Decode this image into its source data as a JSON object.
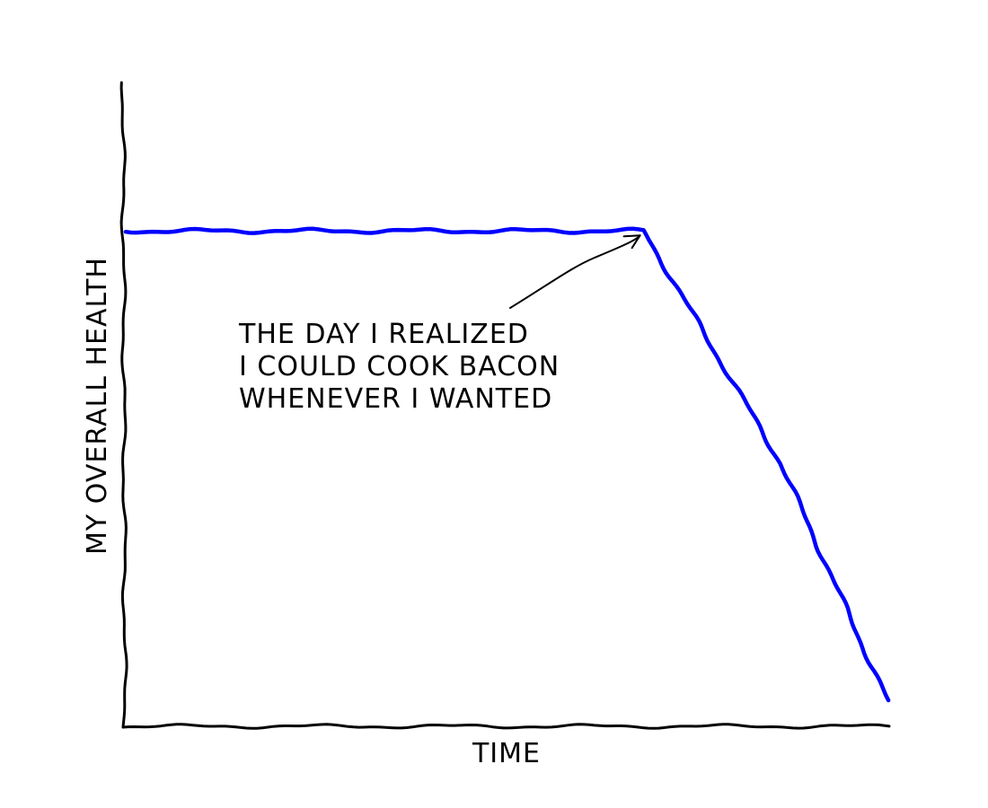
{
  "chart_data": {
    "type": "line",
    "title": "",
    "xlabel": "TIME",
    "ylabel": "MY OVERALL HEALTH",
    "x": [
      0,
      6.8,
      8.6,
      10
    ],
    "series": [
      {
        "values": [
          10,
          10,
          5.3,
          0.5
        ],
        "color": "#0000ff"
      }
    ],
    "xlim": [
      0,
      10
    ],
    "ylim": [
      0,
      13
    ],
    "grid": false,
    "style": "xkcd hand-drawn",
    "annotations": [
      {
        "lines": [
          "THE DAY I REALIZED",
          "I COULD COOK BACON",
          "WHENEVER I WANTED"
        ],
        "points_to_x": 6.8,
        "points_to_y": 10
      }
    ]
  }
}
